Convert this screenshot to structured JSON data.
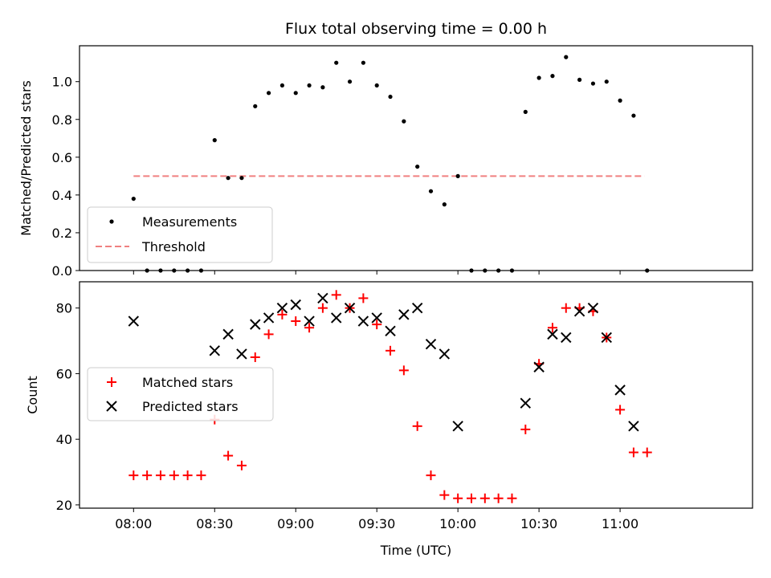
{
  "chart_data": [
    {
      "type": "scatter",
      "title": "Flux total observing time = 0.00 h",
      "xlabel": "",
      "ylabel": "Matched/Predicted stars",
      "xlim": [
        "07:40",
        "11:49"
      ],
      "ylim": [
        0,
        1.19
      ],
      "yticks": [
        "0.0",
        "0.2",
        "0.4",
        "0.6",
        "0.8",
        "1.0"
      ],
      "legend_position": "lower-left",
      "grid": false,
      "series": [
        {
          "name": "Measurements",
          "marker": "dot",
          "color": "#000000",
          "x": [
            "08:00",
            "08:05",
            "08:10",
            "08:15",
            "08:20",
            "08:25",
            "08:30",
            "08:35",
            "08:40",
            "08:45",
            "08:50",
            "08:55",
            "09:00",
            "09:05",
            "09:10",
            "09:15",
            "09:20",
            "09:25",
            "09:30",
            "09:35",
            "09:40",
            "09:45",
            "09:50",
            "09:55",
            "10:00",
            "10:05",
            "10:10",
            "10:15",
            "10:20",
            "10:25",
            "10:30",
            "10:35",
            "10:40",
            "10:45",
            "10:50",
            "10:55",
            "11:00",
            "11:05",
            "11:10"
          ],
          "y": [
            0.38,
            0,
            0,
            0,
            0,
            0,
            0.69,
            0.49,
            0.49,
            0.87,
            0.94,
            0.98,
            0.94,
            0.98,
            0.97,
            1.1,
            1.0,
            1.1,
            0.98,
            0.92,
            0.79,
            0.55,
            0.42,
            0.35,
            0.5,
            0,
            0,
            0,
            0,
            0.84,
            1.02,
            1.03,
            1.13,
            1.01,
            0.99,
            1.0,
            0.9,
            0.82,
            0
          ]
        },
        {
          "name": "Threshold",
          "style": "dashed-line",
          "color": "#f08080",
          "x": [
            "08:00",
            "11:09"
          ],
          "y": [
            0.5,
            0.5
          ]
        }
      ]
    },
    {
      "type": "scatter",
      "xlabel": "Time (UTC)",
      "ylabel": "Count",
      "xlim": [
        "07:40",
        "11:49"
      ],
      "ylim": [
        19,
        88
      ],
      "xticks": [
        "08:00",
        "08:30",
        "09:00",
        "09:30",
        "10:00",
        "10:30",
        "11:00"
      ],
      "yticks": [
        "20",
        "40",
        "60",
        "80"
      ],
      "legend_position": "center-left",
      "grid": false,
      "series": [
        {
          "name": "Matched stars",
          "marker": "plus",
          "color": "#ff0000",
          "x": [
            "08:00",
            "08:05",
            "08:10",
            "08:15",
            "08:20",
            "08:25",
            "08:30",
            "08:35",
            "08:40",
            "08:45",
            "08:50",
            "08:55",
            "09:00",
            "09:05",
            "09:10",
            "09:15",
            "09:20",
            "09:25",
            "09:30",
            "09:35",
            "09:40",
            "09:45",
            "09:50",
            "09:55",
            "10:00",
            "10:05",
            "10:10",
            "10:15",
            "10:20",
            "10:25",
            "10:30",
            "10:35",
            "10:40",
            "10:45",
            "10:50",
            "10:55",
            "11:00",
            "11:05",
            "11:10"
          ],
          "y": [
            29,
            29,
            29,
            29,
            29,
            29,
            46,
            35,
            32,
            65,
            72,
            78,
            76,
            74,
            80,
            84,
            80,
            83,
            75,
            67,
            61,
            44,
            29,
            23,
            22,
            22,
            22,
            22,
            22,
            43,
            63,
            74,
            80,
            80,
            79,
            71,
            49,
            36,
            36
          ]
        },
        {
          "name": "Predicted stars",
          "marker": "x",
          "color": "#000000",
          "x": [
            "08:00",
            "08:30",
            "08:35",
            "08:40",
            "08:45",
            "08:50",
            "08:55",
            "09:00",
            "09:05",
            "09:10",
            "09:15",
            "09:20",
            "09:25",
            "09:30",
            "09:35",
            "09:40",
            "09:45",
            "09:50",
            "09:55",
            "10:00",
            "10:25",
            "10:30",
            "10:35",
            "10:40",
            "10:45",
            "10:50",
            "10:55",
            "11:00",
            "11:05"
          ],
          "y": [
            76,
            67,
            72,
            66,
            75,
            77,
            80,
            81,
            76,
            83,
            77,
            80,
            76,
            77,
            73,
            78,
            80,
            69,
            66,
            44,
            51,
            62,
            72,
            71,
            79,
            80,
            71,
            55,
            44
          ]
        }
      ]
    }
  ]
}
